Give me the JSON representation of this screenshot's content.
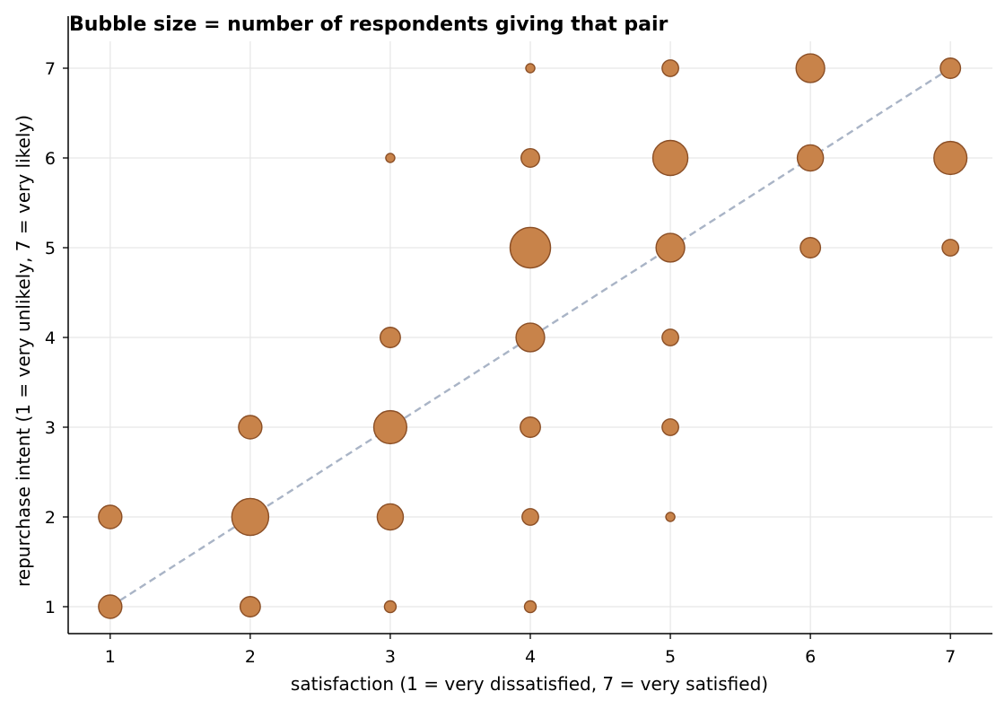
{
  "chart_data": {
    "type": "scatter",
    "title": "Bubble size = number of respondents giving that pair",
    "xlabel": "satisfaction (1 = very dissatisfied, 7 = very satisfied)",
    "ylabel": "repurchase intent (1 = very unlikely, 7 = very likely)",
    "xlim": [
      0.7,
      7.3
    ],
    "ylim": [
      0.7,
      7.3
    ],
    "xticks": [
      "1",
      "2",
      "3",
      "4",
      "5",
      "6",
      "7"
    ],
    "yticks": [
      "1",
      "2",
      "3",
      "4",
      "5",
      "6",
      "7"
    ],
    "grid": true,
    "bubble_color": "#c8834a",
    "bubble_edge_color": "#8b4f26",
    "reference_line": {
      "from": [
        1,
        1
      ],
      "to": [
        7,
        7
      ],
      "style": "dashed",
      "color": "#a9b4c6"
    },
    "points": [
      {
        "x": 1,
        "y": 1,
        "count": 4
      },
      {
        "x": 1,
        "y": 2,
        "count": 4
      },
      {
        "x": 2,
        "y": 1,
        "count": 3
      },
      {
        "x": 2,
        "y": 2,
        "count": 10
      },
      {
        "x": 2,
        "y": 3,
        "count": 4
      },
      {
        "x": 3,
        "y": 1,
        "count": 1
      },
      {
        "x": 3,
        "y": 2,
        "count": 5
      },
      {
        "x": 3,
        "y": 3,
        "count": 8
      },
      {
        "x": 3,
        "y": 4,
        "count": 3
      },
      {
        "x": 3,
        "y": 6,
        "count": 0.6
      },
      {
        "x": 4,
        "y": 1,
        "count": 1
      },
      {
        "x": 4,
        "y": 2,
        "count": 2
      },
      {
        "x": 4,
        "y": 3,
        "count": 3
      },
      {
        "x": 4,
        "y": 4,
        "count": 6
      },
      {
        "x": 4,
        "y": 5,
        "count": 12
      },
      {
        "x": 4,
        "y": 6,
        "count": 2.5
      },
      {
        "x": 4,
        "y": 7,
        "count": 0.6
      },
      {
        "x": 5,
        "y": 2,
        "count": 0.6
      },
      {
        "x": 5,
        "y": 3,
        "count": 2
      },
      {
        "x": 5,
        "y": 4,
        "count": 2
      },
      {
        "x": 5,
        "y": 5,
        "count": 6
      },
      {
        "x": 5,
        "y": 6,
        "count": 9
      },
      {
        "x": 5,
        "y": 7,
        "count": 2
      },
      {
        "x": 6,
        "y": 5,
        "count": 3
      },
      {
        "x": 6,
        "y": 6,
        "count": 5
      },
      {
        "x": 6,
        "y": 7,
        "count": 6
      },
      {
        "x": 7,
        "y": 5,
        "count": 2
      },
      {
        "x": 7,
        "y": 6,
        "count": 8
      },
      {
        "x": 7,
        "y": 7,
        "count": 3
      }
    ]
  }
}
